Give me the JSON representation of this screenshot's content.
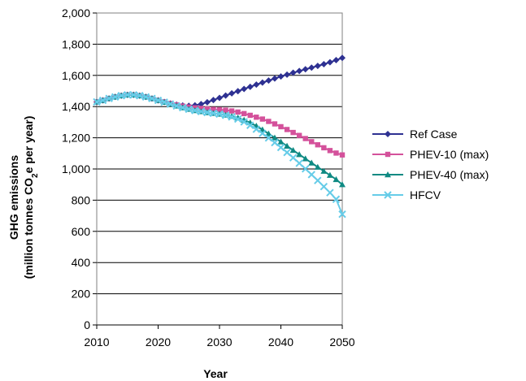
{
  "chart_data": {
    "type": "line",
    "xlabel": "Year",
    "ylabel_line1": "GHG emissions",
    "ylabel_line2_pre": "(million tonnes CO",
    "ylabel_sub": "2",
    "ylabel_line2_post": "e per year)",
    "xlim": [
      2010,
      2050
    ],
    "ylim": [
      0,
      2000
    ],
    "xticks": [
      "2010",
      "2020",
      "2030",
      "2040",
      "2050"
    ],
    "yticks": [
      "0",
      "200",
      "400",
      "600",
      "800",
      "1,000",
      "1,200",
      "1,400",
      "1,600",
      "1,800",
      "2,000"
    ],
    "grid": "horizontal",
    "legend_position": "right",
    "x": [
      2010,
      2011,
      2012,
      2013,
      2014,
      2015,
      2016,
      2017,
      2018,
      2019,
      2020,
      2021,
      2022,
      2023,
      2024,
      2025,
      2026,
      2027,
      2028,
      2029,
      2030,
      2031,
      2032,
      2033,
      2034,
      2035,
      2036,
      2037,
      2038,
      2039,
      2040,
      2041,
      2042,
      2043,
      2044,
      2045,
      2046,
      2047,
      2048,
      2049,
      2050
    ],
    "series": [
      {
        "name": "Ref Case",
        "color": "#2e3192",
        "marker": "diamond",
        "values": [
          1430,
          1440,
          1452,
          1462,
          1470,
          1475,
          1475,
          1470,
          1462,
          1452,
          1440,
          1430,
          1420,
          1412,
          1407,
          1405,
          1408,
          1416,
          1428,
          1442,
          1456,
          1471,
          1485,
          1499,
          1513,
          1527,
          1541,
          1554,
          1567,
          1580,
          1593,
          1605,
          1617,
          1628,
          1639,
          1650,
          1661,
          1672,
          1684,
          1698,
          1712
        ]
      },
      {
        "name": "PHEV-10 (max)",
        "color": "#d4519b",
        "marker": "square",
        "values": [
          1430,
          1440,
          1452,
          1462,
          1470,
          1475,
          1475,
          1470,
          1462,
          1452,
          1440,
          1430,
          1420,
          1411,
          1403,
          1397,
          1392,
          1388,
          1385,
          1382,
          1380,
          1377,
          1372,
          1365,
          1355,
          1344,
          1332,
          1320,
          1305,
          1289,
          1271,
          1253,
          1234,
          1215,
          1195,
          1175,
          1155,
          1136,
          1118,
          1102,
          1090
        ]
      },
      {
        "name": "PHEV-40 (max)",
        "color": "#0f8a83",
        "marker": "triangle",
        "values": [
          1430,
          1440,
          1452,
          1462,
          1470,
          1475,
          1475,
          1470,
          1462,
          1452,
          1440,
          1428,
          1416,
          1404,
          1393,
          1383,
          1375,
          1368,
          1362,
          1357,
          1352,
          1346,
          1338,
          1328,
          1314,
          1297,
          1276,
          1252,
          1226,
          1200,
          1174,
          1147,
          1120,
          1093,
          1066,
          1039,
          1012,
          986,
          960,
          933,
          900
        ]
      },
      {
        "name": "HFCV",
        "color": "#66cce8",
        "marker": "x",
        "values": [
          1430,
          1440,
          1452,
          1462,
          1470,
          1475,
          1475,
          1470,
          1462,
          1452,
          1440,
          1428,
          1416,
          1404,
          1393,
          1383,
          1375,
          1368,
          1362,
          1357,
          1352,
          1344,
          1334,
          1320,
          1302,
          1280,
          1255,
          1228,
          1199,
          1169,
          1138,
          1106,
          1072,
          1037,
          1001,
          964,
          926,
          887,
          848,
          806,
          710
        ]
      }
    ]
  }
}
